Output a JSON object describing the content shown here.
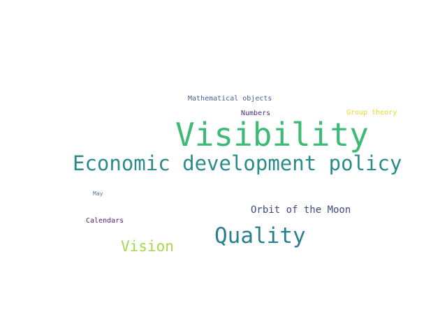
{
  "words": {
    "mathematical_objects": {
      "text": "Mathematical objects",
      "color": "#4a5f8f"
    },
    "numbers": {
      "text": "Numbers",
      "color": "#472d7b"
    },
    "group_theory": {
      "text": "Group theory",
      "color": "#e8d92a"
    },
    "visibility": {
      "text": "Visibility",
      "color": "#3dbb74"
    },
    "economic_development_policy": {
      "text": "Economic development policy",
      "color": "#2a8c8a"
    },
    "may": {
      "text": "May",
      "color": "#3f7ea0"
    },
    "orbit_of_the_moon": {
      "text": "Orbit of the Moon",
      "color": "#3f4a88"
    },
    "calendars": {
      "text": "Calendars",
      "color": "#482475"
    },
    "quality": {
      "text": "Quality",
      "color": "#2a7f8e"
    },
    "vision": {
      "text": "Vision",
      "color": "#a6d94a"
    }
  }
}
